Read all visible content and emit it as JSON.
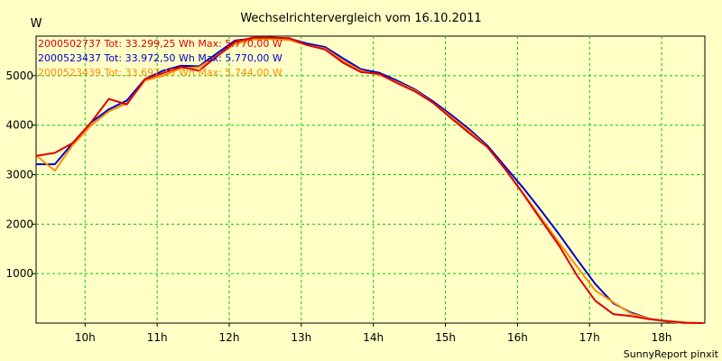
{
  "chart_data": {
    "type": "line",
    "title": "Wechselrichtervergleich vom 16.10.2011",
    "ylabel": "W",
    "xlabel": "",
    "xlim": [
      9.32,
      18.6
    ],
    "ylim": [
      0,
      5800
    ],
    "x_ticks": [
      {
        "value": 10,
        "label": "10h"
      },
      {
        "value": 11,
        "label": "11h"
      },
      {
        "value": 12,
        "label": "12h"
      },
      {
        "value": 13,
        "label": "13h"
      },
      {
        "value": 14,
        "label": "14h"
      },
      {
        "value": 15,
        "label": "15h"
      },
      {
        "value": 16,
        "label": "16h"
      },
      {
        "value": 17,
        "label": "17h"
      },
      {
        "value": 18,
        "label": "18h"
      }
    ],
    "y_ticks": [
      {
        "value": 1000,
        "label": "1000"
      },
      {
        "value": 2000,
        "label": "2000"
      },
      {
        "value": 3000,
        "label": "3000"
      },
      {
        "value": 4000,
        "label": "4000"
      },
      {
        "value": 5000,
        "label": "5000"
      }
    ],
    "grid": true,
    "footer": "SunnyReport pinxit",
    "series": [
      {
        "name": "2000523437",
        "legend": "2000523437 Tot: 33.972,50 Wh Max: 5.770,00 W",
        "color": "#0000cc",
        "x": [
          9.32,
          9.58,
          9.83,
          10.08,
          10.33,
          10.58,
          10.83,
          11.08,
          11.33,
          11.58,
          11.83,
          12.08,
          12.33,
          12.58,
          12.83,
          13.08,
          13.33,
          13.58,
          13.83,
          14.08,
          14.33,
          14.58,
          14.83,
          15.08,
          15.33,
          15.58,
          15.83,
          16.08,
          16.33,
          16.58,
          16.83,
          17.08,
          17.33,
          17.58,
          17.83,
          18.08,
          18.33,
          18.58
        ],
        "y": [
          3210,
          3210,
          3640,
          4050,
          4320,
          4500,
          4930,
          5100,
          5200,
          5190,
          5450,
          5710,
          5750,
          5770,
          5750,
          5650,
          5580,
          5350,
          5130,
          5060,
          4900,
          4720,
          4480,
          4210,
          3920,
          3590,
          3160,
          2730,
          2270,
          1790,
          1280,
          790,
          400,
          210,
          90,
          30,
          0,
          0
        ]
      },
      {
        "name": "2000523439",
        "legend": "2000523439 Tot: 33.697,15 Wh Max: 5.744,00 W",
        "color": "#ff8c00",
        "x": [
          9.32,
          9.58,
          9.83,
          10.08,
          10.33,
          10.58,
          10.83,
          11.08,
          11.33,
          11.58,
          11.83,
          12.08,
          12.33,
          12.58,
          12.83,
          13.08,
          13.33,
          13.58,
          13.83,
          14.08,
          14.33,
          14.58,
          14.83,
          15.08,
          15.33,
          15.58,
          15.83,
          16.08,
          16.33,
          16.58,
          16.83,
          17.08,
          17.33,
          17.58,
          17.83,
          18.08,
          18.33,
          18.58
        ],
        "y": [
          3390,
          3080,
          3600,
          3990,
          4280,
          4440,
          4900,
          5000,
          5150,
          5170,
          5400,
          5640,
          5730,
          5744,
          5720,
          5620,
          5550,
          5300,
          5100,
          5020,
          4870,
          4700,
          4450,
          4170,
          3880,
          3560,
          3110,
          2620,
          2120,
          1620,
          1130,
          660,
          420,
          190,
          90,
          30,
          0,
          0
        ]
      },
      {
        "name": "2000502737",
        "legend": "2000502737 Tot: 33.299,25 Wh Max: 5.770,00 W",
        "color": "#dd0000",
        "x": [
          9.32,
          9.58,
          9.83,
          10.08,
          10.33,
          10.58,
          10.83,
          11.08,
          11.33,
          11.58,
          11.83,
          12.08,
          12.33,
          12.58,
          12.83,
          13.08,
          13.33,
          13.58,
          13.83,
          14.08,
          14.33,
          14.58,
          14.83,
          15.08,
          15.33,
          15.58,
          15.83,
          16.08,
          16.33,
          16.58,
          16.83,
          17.08,
          17.33,
          17.58,
          17.83,
          18.08,
          18.33,
          18.58
        ],
        "y": [
          3380,
          3440,
          3640,
          4050,
          4530,
          4420,
          4930,
          5050,
          5180,
          5100,
          5390,
          5680,
          5770,
          5770,
          5760,
          5620,
          5530,
          5260,
          5070,
          5040,
          4850,
          4680,
          4450,
          4140,
          3840,
          3560,
          3110,
          2610,
          2080,
          1560,
          950,
          450,
          180,
          140,
          80,
          40,
          10,
          0
        ]
      }
    ]
  }
}
